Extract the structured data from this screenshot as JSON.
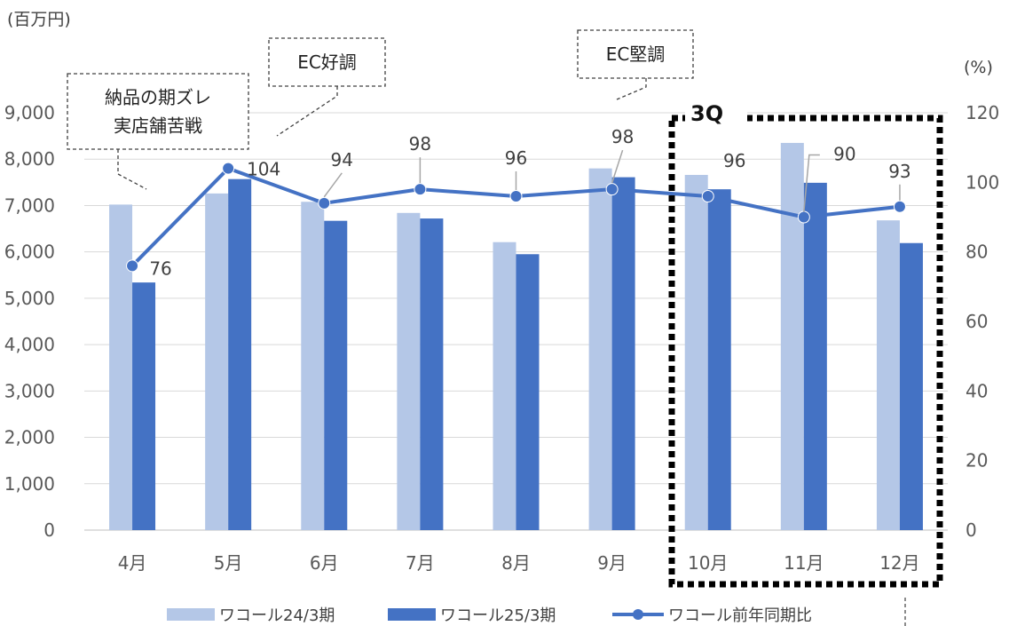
{
  "chart_data": {
    "type": "bar",
    "categories": [
      "4月",
      "5月",
      "6月",
      "7月",
      "8月",
      "9月",
      "10月",
      "11月",
      "12月"
    ],
    "series": [
      {
        "name": "ワコール24/3期",
        "type": "bar",
        "axis": "left",
        "color": "#b4c7e7",
        "values": [
          7020,
          7260,
          7080,
          6840,
          6210,
          7800,
          7660,
          8350,
          6680
        ]
      },
      {
        "name": "ワコール25/3期",
        "type": "bar",
        "axis": "left",
        "color": "#4472c4",
        "values": [
          5340,
          7570,
          6670,
          6720,
          5950,
          7610,
          7350,
          7490,
          6190
        ]
      },
      {
        "name": "ワコール前年同期比",
        "type": "line",
        "axis": "right",
        "color": "#4472c4",
        "values": [
          76,
          104,
          94,
          98,
          96,
          98,
          96,
          90,
          93
        ]
      }
    ],
    "y_left": {
      "unit": "(百万円)",
      "min": 0,
      "max": 9000,
      "ticks": [
        "0",
        "1,000",
        "2,000",
        "3,000",
        "4,000",
        "5,000",
        "6,000",
        "7,000",
        "8,000",
        "9,000"
      ]
    },
    "y_right": {
      "unit": "(%)",
      "min": 0,
      "max": 120,
      "ticks": [
        "0",
        "20",
        "40",
        "60",
        "80",
        "100",
        "120"
      ]
    },
    "data_labels": [
      "76",
      "104",
      "94",
      "98",
      "96",
      "98",
      "96",
      "90",
      "93"
    ],
    "annotations": [
      {
        "lines": [
          "納品の期ズレ",
          "実店舗苦戦"
        ]
      },
      {
        "lines": [
          "EC好調"
        ]
      },
      {
        "lines": [
          "EC堅調"
        ]
      }
    ],
    "highlight": {
      "label": "3Q",
      "categories": [
        "10月",
        "11月",
        "12月"
      ]
    },
    "grid": true,
    "legend_position": "bottom"
  }
}
